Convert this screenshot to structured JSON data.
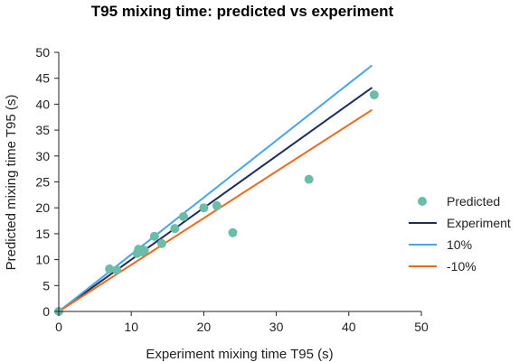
{
  "chart_data": {
    "type": "scatter",
    "title": "T95 mixing time: predicted vs experiment",
    "xlabel": "Experiment mixing time T95 (s)",
    "ylabel": "Predicted mixing time T95 (s)",
    "xlim": [
      0,
      50
    ],
    "ylim": [
      0,
      50
    ],
    "xticks": [
      0,
      10,
      20,
      30,
      40,
      50
    ],
    "yticks": [
      0,
      5,
      10,
      15,
      20,
      25,
      30,
      35,
      40,
      45,
      50
    ],
    "grid": false,
    "legend_position": "right",
    "series": [
      {
        "name": "Predicted",
        "kind": "scatter",
        "color": "#6cbcaa",
        "points": [
          [
            0,
            0
          ],
          [
            7,
            8.2
          ],
          [
            8,
            8
          ],
          [
            10.8,
            11.2
          ],
          [
            11,
            12
          ],
          [
            11.5,
            11.5
          ],
          [
            11.8,
            11.8
          ],
          [
            13.2,
            14.5
          ],
          [
            14.2,
            13.1
          ],
          [
            16,
            16
          ],
          [
            17.2,
            18.3
          ],
          [
            20,
            20
          ],
          [
            21.8,
            20.4
          ],
          [
            24,
            15.2
          ],
          [
            34.5,
            25.5
          ],
          [
            43.5,
            41.8
          ]
        ]
      },
      {
        "name": "Experiment",
        "kind": "line",
        "color": "#1b2e5e",
        "points": [
          [
            0,
            0
          ],
          [
            43.2,
            43.2
          ]
        ]
      },
      {
        "name": "10%",
        "kind": "line",
        "color": "#4aa3e8",
        "points": [
          [
            0,
            0
          ],
          [
            43.2,
            47.5
          ]
        ]
      },
      {
        "name": "-10%",
        "kind": "line",
        "color": "#ec6a1e",
        "points": [
          [
            0,
            0
          ],
          [
            43.2,
            38.9
          ]
        ]
      }
    ]
  }
}
